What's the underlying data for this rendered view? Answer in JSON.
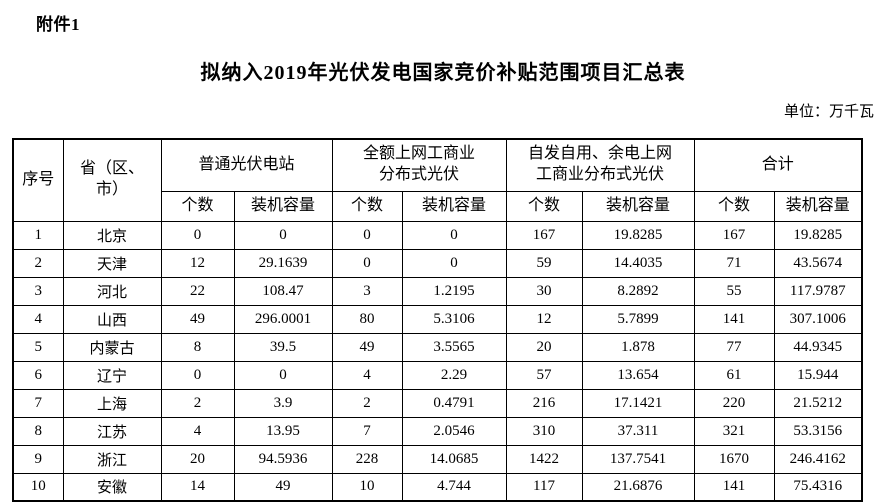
{
  "page": {
    "attachment_label": "附件1",
    "title": "拟纳入2019年光伏发电国家竞价补贴范围项目汇总表",
    "unit_label": "单位：万千瓦"
  },
  "table": {
    "header": {
      "serial": "序号",
      "province": "省（区、\n市）",
      "group_ordinary_pv": "普通光伏电站",
      "group_full_grid_pv": "全额上网工商业\n分布式光伏",
      "group_self_use_pv": "自发自用、余电上网\n工商业分布式光伏",
      "group_total": "合计",
      "count": "个数",
      "capacity": "装机容量"
    },
    "rows": [
      [
        "1",
        "北京",
        "0",
        "0",
        "0",
        "0",
        "167",
        "19.8285",
        "167",
        "19.8285"
      ],
      [
        "2",
        "天津",
        "12",
        "29.1639",
        "0",
        "0",
        "59",
        "14.4035",
        "71",
        "43.5674"
      ],
      [
        "3",
        "河北",
        "22",
        "108.47",
        "3",
        "1.2195",
        "30",
        "8.2892",
        "55",
        "117.9787"
      ],
      [
        "4",
        "山西",
        "49",
        "296.0001",
        "80",
        "5.3106",
        "12",
        "5.7899",
        "141",
        "307.1006"
      ],
      [
        "5",
        "内蒙古",
        "8",
        "39.5",
        "49",
        "3.5565",
        "20",
        "1.878",
        "77",
        "44.9345"
      ],
      [
        "6",
        "辽宁",
        "0",
        "0",
        "4",
        "2.29",
        "57",
        "13.654",
        "61",
        "15.944"
      ],
      [
        "7",
        "上海",
        "2",
        "3.9",
        "2",
        "0.4791",
        "216",
        "17.1421",
        "220",
        "21.5212"
      ],
      [
        "8",
        "江苏",
        "4",
        "13.95",
        "7",
        "2.0546",
        "310",
        "37.311",
        "321",
        "53.3156"
      ],
      [
        "9",
        "浙江",
        "20",
        "94.5936",
        "228",
        "14.0685",
        "1422",
        "137.7541",
        "1670",
        "246.4162"
      ],
      [
        "10",
        "安徽",
        "14",
        "49",
        "10",
        "4.744",
        "117",
        "21.6876",
        "141",
        "75.4316"
      ]
    ]
  }
}
